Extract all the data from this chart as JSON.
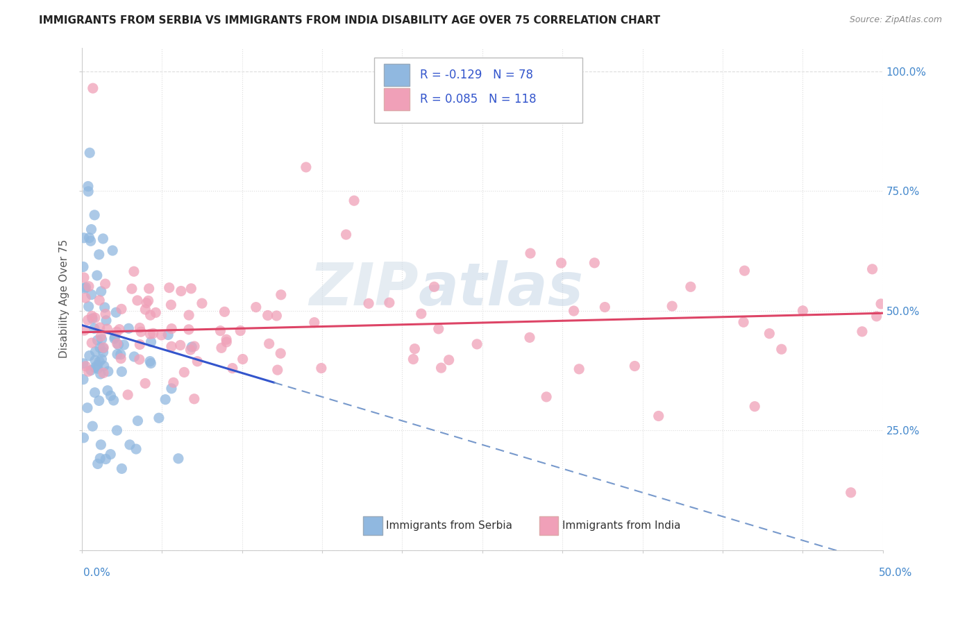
{
  "title": "IMMIGRANTS FROM SERBIA VS IMMIGRANTS FROM INDIA DISABILITY AGE OVER 75 CORRELATION CHART",
  "source": "Source: ZipAtlas.com",
  "ylabel_label": "Disability Age Over 75",
  "xlim": [
    0.0,
    0.5
  ],
  "ylim": [
    0.0,
    1.05
  ],
  "serbia_R": -0.129,
  "serbia_N": 78,
  "india_R": 0.085,
  "india_N": 118,
  "serbia_color": "#90b8e0",
  "india_color": "#f0a0b8",
  "serbia_line_color": "#3355cc",
  "india_line_color": "#dd4466",
  "dashed_line_color": "#7799cc",
  "ytick_color": "#4488cc",
  "xtick_color": "#4488cc",
  "watermark_color": "#c8d8ee",
  "grid_color": "#dddddd",
  "title_color": "#222222",
  "source_color": "#888888",
  "ylabel_color": "#555555",
  "legend_text_color": "#3355cc",
  "legend_r_color": "#cc3355",
  "background": "#ffffff"
}
